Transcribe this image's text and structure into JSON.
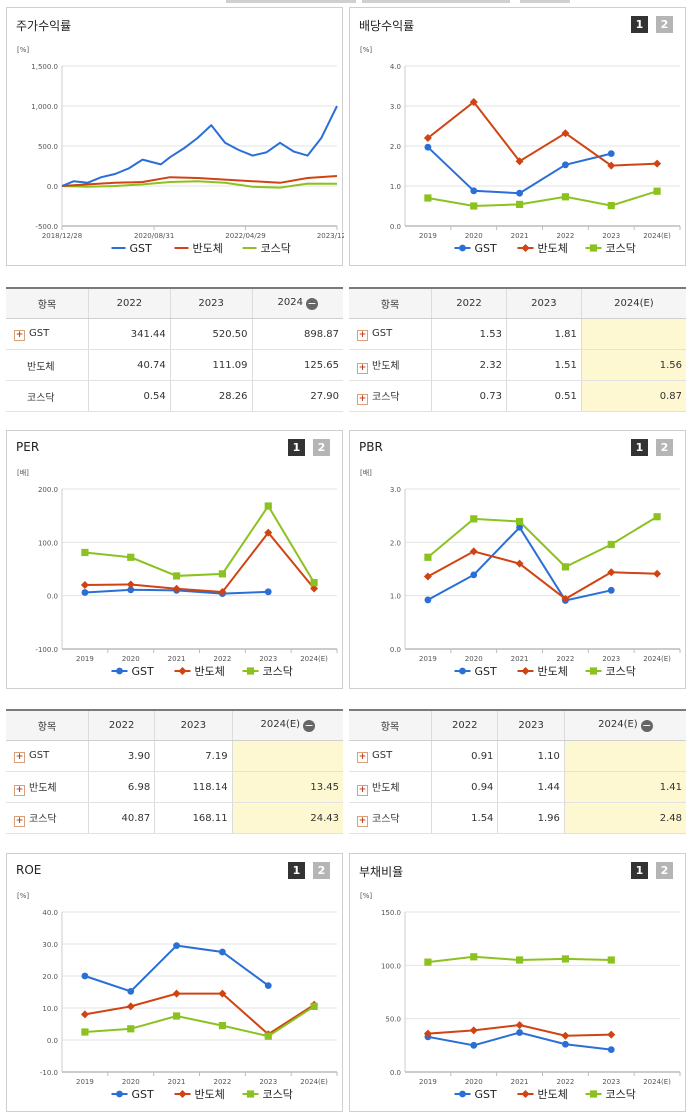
{
  "colors": {
    "gst": "#2a6fd6",
    "semi": "#d04312",
    "kosdaq": "#8cc21f"
  },
  "pager": {
    "p1": "1",
    "p2": "2"
  },
  "legend": {
    "gst": "GST",
    "semi": "반도체",
    "kosdaq": "코스닥"
  },
  "stock_return": {
    "title": "주가수익률",
    "unit": "[%]",
    "y_ticks": [
      "1,500.0",
      "1,000.0",
      "500.0",
      "0.0",
      "-500.0"
    ],
    "x_ticks": [
      "2018/12/28",
      "2020/08/31",
      "2022/04/29",
      "2023/12/28"
    ]
  },
  "dividend": {
    "title": "배당수익률",
    "unit": "[%]",
    "y_ticks": [
      "4.0",
      "3.0",
      "2.0",
      "1.0",
      "0.0"
    ],
    "x_ticks": [
      "2019",
      "2020",
      "2021",
      "2022",
      "2023",
      "2024(E)"
    ]
  },
  "per": {
    "title": "PER",
    "unit": "[배]",
    "y_ticks": [
      "200.0",
      "100.0",
      "0.0",
      "-100.0"
    ],
    "x_ticks": [
      "2019",
      "2020",
      "2021",
      "2022",
      "2023",
      "2024(E)"
    ]
  },
  "pbr": {
    "title": "PBR",
    "unit": "[배]",
    "y_ticks": [
      "3.0",
      "2.0",
      "1.0",
      "0.0"
    ],
    "x_ticks": [
      "2019",
      "2020",
      "2021",
      "2022",
      "2023",
      "2024(E)"
    ]
  },
  "roe": {
    "title": "ROE",
    "unit": "[%]",
    "y_ticks": [
      "40.0",
      "30.0",
      "20.0",
      "10.0",
      "0.0",
      "-10.0"
    ],
    "x_ticks": [
      "2019",
      "2020",
      "2021",
      "2022",
      "2023",
      "2024(E)"
    ]
  },
  "debt": {
    "title": "부채비율",
    "unit": "[%]",
    "y_ticks": [
      "150.0",
      "100.0",
      "50.0",
      "0.0"
    ],
    "x_ticks": [
      "2019",
      "2020",
      "2021",
      "2022",
      "2023",
      "2024(E)"
    ]
  },
  "tables": {
    "header_item": "항목",
    "return_table": {
      "cols": [
        "2022",
        "2023",
        "2024"
      ],
      "rows": [
        {
          "name": "GST",
          "v": [
            "341.44",
            "520.50",
            "898.87"
          ]
        },
        {
          "name": "반도체",
          "v": [
            "40.74",
            "111.09",
            "125.65"
          ]
        },
        {
          "name": "코스닥",
          "v": [
            "0.54",
            "28.26",
            "27.90"
          ]
        }
      ]
    },
    "dividend_table": {
      "cols": [
        "2022",
        "2023",
        "2024(E)"
      ],
      "rows": [
        {
          "name": "GST",
          "v": [
            "1.53",
            "1.81",
            ""
          ]
        },
        {
          "name": "반도체",
          "v": [
            "2.32",
            "1.51",
            "1.56"
          ]
        },
        {
          "name": "코스닥",
          "v": [
            "0.73",
            "0.51",
            "0.87"
          ]
        }
      ]
    },
    "per_table": {
      "cols": [
        "2022",
        "2023",
        "2024(E)"
      ],
      "rows": [
        {
          "name": "GST",
          "v": [
            "3.90",
            "7.19",
            ""
          ]
        },
        {
          "name": "반도체",
          "v": [
            "6.98",
            "118.14",
            "13.45"
          ]
        },
        {
          "name": "코스닥",
          "v": [
            "40.87",
            "168.11",
            "24.43"
          ]
        }
      ]
    },
    "pbr_table": {
      "cols": [
        "2022",
        "2023",
        "2024(E)"
      ],
      "rows": [
        {
          "name": "GST",
          "v": [
            "0.91",
            "1.10",
            ""
          ]
        },
        {
          "name": "반도체",
          "v": [
            "0.94",
            "1.44",
            "1.41"
          ]
        },
        {
          "name": "코스닥",
          "v": [
            "1.54",
            "1.96",
            "2.48"
          ]
        }
      ]
    }
  },
  "chart_data": [
    {
      "id": "stock_return",
      "type": "line",
      "title": "주가수익률",
      "ylabel": "[%]",
      "ylim": [
        -500,
        1500
      ],
      "x_range": [
        "2018-12-28",
        "2023-12-28"
      ],
      "series": [
        {
          "name": "GST",
          "x": [
            "2018-12-28",
            "2019-03",
            "2019-06",
            "2019-09",
            "2019-12",
            "2020-03",
            "2020-06",
            "2020-08",
            "2020-10",
            "2020-12",
            "2021-03",
            "2021-06",
            "2021-09",
            "2021-12",
            "2022-03",
            "2022-06",
            "2022-09",
            "2022-12",
            "2023-03",
            "2023-06",
            "2023-09",
            "2023-12-28"
          ],
          "values": [
            0,
            60,
            40,
            110,
            150,
            220,
            330,
            300,
            270,
            360,
            470,
            600,
            760,
            540,
            450,
            380,
            420,
            540,
            430,
            380,
            600,
            1000
          ]
        },
        {
          "name": "반도체",
          "x": [
            "2018-12-28",
            "2019-06",
            "2019-12",
            "2020-06",
            "2020-12",
            "2021-06",
            "2021-12",
            "2022-06",
            "2022-12",
            "2023-06",
            "2023-12-28"
          ],
          "values": [
            0,
            20,
            40,
            50,
            110,
            100,
            80,
            60,
            40,
            100,
            125
          ]
        },
        {
          "name": "코스닥",
          "x": [
            "2018-12-28",
            "2019-06",
            "2019-12",
            "2020-06",
            "2020-12",
            "2021-06",
            "2021-12",
            "2022-06",
            "2022-12",
            "2023-06",
            "2023-12-28"
          ],
          "values": [
            0,
            -10,
            0,
            20,
            50,
            60,
            40,
            -10,
            -20,
            30,
            28
          ]
        }
      ]
    },
    {
      "id": "dividend",
      "type": "line",
      "title": "배당수익률",
      "ylabel": "[%]",
      "ylim": [
        0,
        4
      ],
      "categories": [
        "2019",
        "2020",
        "2021",
        "2022",
        "2023",
        "2024(E)"
      ],
      "series": [
        {
          "name": "GST",
          "values": [
            1.97,
            0.88,
            0.82,
            1.53,
            1.81,
            null
          ]
        },
        {
          "name": "반도체",
          "values": [
            2.2,
            3.1,
            1.62,
            2.32,
            1.51,
            1.56
          ]
        },
        {
          "name": "코스닥",
          "values": [
            0.7,
            0.5,
            0.54,
            0.73,
            0.51,
            0.87
          ]
        }
      ]
    },
    {
      "id": "per",
      "type": "line",
      "title": "PER",
      "ylabel": "[배]",
      "ylim": [
        -100,
        200
      ],
      "categories": [
        "2019",
        "2020",
        "2021",
        "2022",
        "2023",
        "2024(E)"
      ],
      "series": [
        {
          "name": "GST",
          "values": [
            6,
            11,
            10,
            3.9,
            7.19,
            null
          ]
        },
        {
          "name": "반도체",
          "values": [
            20,
            21,
            13,
            6.98,
            118.14,
            13.45
          ]
        },
        {
          "name": "코스닥",
          "values": [
            81,
            72,
            37,
            40.87,
            168.11,
            24.43
          ]
        }
      ]
    },
    {
      "id": "pbr",
      "type": "line",
      "title": "PBR",
      "ylabel": "[배]",
      "ylim": [
        0,
        3
      ],
      "categories": [
        "2019",
        "2020",
        "2021",
        "2022",
        "2023",
        "2024(E)"
      ],
      "series": [
        {
          "name": "GST",
          "values": [
            0.92,
            1.39,
            2.28,
            0.91,
            1.1,
            null
          ]
        },
        {
          "name": "반도체",
          "values": [
            1.36,
            1.83,
            1.6,
            0.94,
            1.44,
            1.41
          ]
        },
        {
          "name": "코스닥",
          "values": [
            1.72,
            2.44,
            2.39,
            1.54,
            1.96,
            2.48
          ]
        }
      ]
    },
    {
      "id": "roe",
      "type": "line",
      "title": "ROE",
      "ylabel": "[%]",
      "ylim": [
        -10,
        40
      ],
      "categories": [
        "2019",
        "2020",
        "2021",
        "2022",
        "2023",
        "2024(E)"
      ],
      "series": [
        {
          "name": "GST",
          "values": [
            20,
            15.2,
            29.5,
            27.5,
            17,
            null
          ]
        },
        {
          "name": "반도체",
          "values": [
            8,
            10.5,
            14.5,
            14.5,
            1.8,
            11
          ]
        },
        {
          "name": "코스닥",
          "values": [
            2.5,
            3.5,
            7.5,
            4.5,
            1.2,
            10.5
          ]
        }
      ]
    },
    {
      "id": "debt",
      "type": "line",
      "title": "부채비율",
      "ylabel": "[%]",
      "ylim": [
        0,
        150
      ],
      "categories": [
        "2019",
        "2020",
        "2021",
        "2022",
        "2023",
        "2024(E)"
      ],
      "series": [
        {
          "name": "GST",
          "values": [
            33,
            25,
            37,
            26,
            21,
            null
          ]
        },
        {
          "name": "반도체",
          "values": [
            36,
            39,
            44,
            34,
            35,
            null
          ]
        },
        {
          "name": "코스닥",
          "values": [
            103,
            108,
            105,
            106,
            105,
            null
          ]
        }
      ]
    }
  ]
}
